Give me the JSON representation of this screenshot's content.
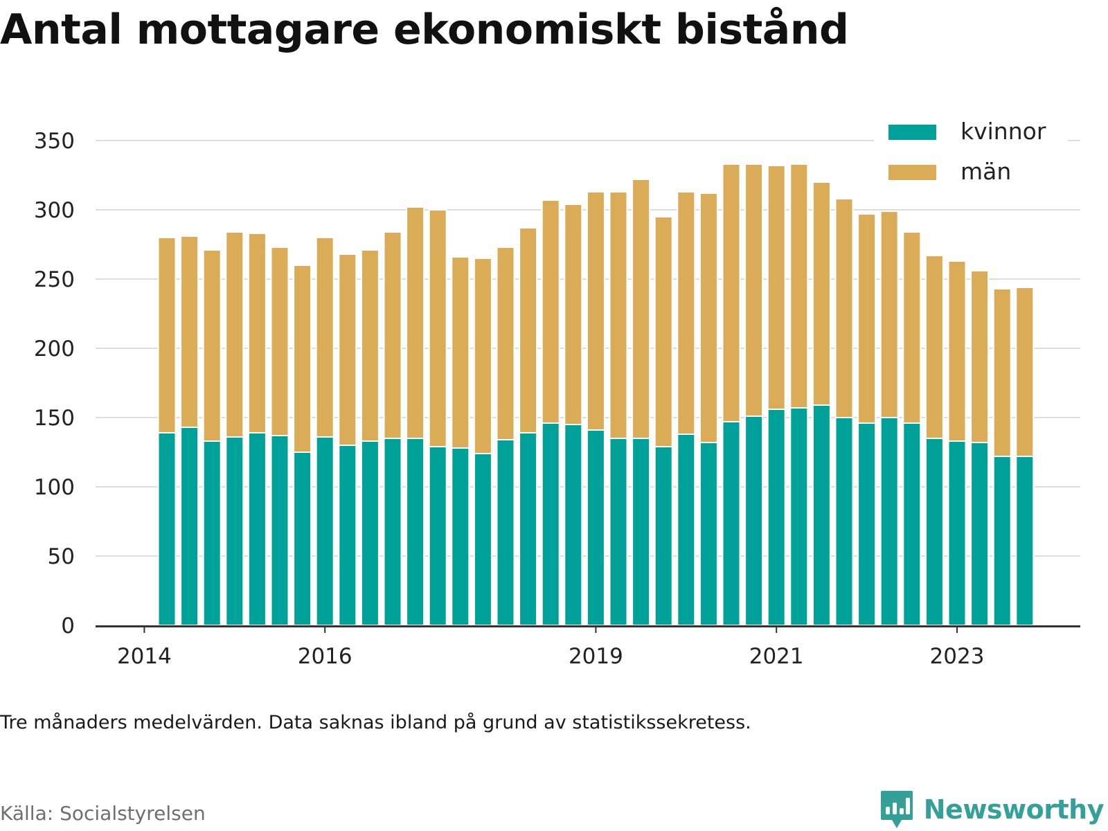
{
  "title": "Antal mottagare ekonomiskt bistånd",
  "note": "Tre månaders medelvärden. Data saknas ibland på grund av statistikssekretess.",
  "source": "Källa: Socialstyrelsen",
  "brand": {
    "name": "Newsworthy",
    "icon": "newsworthy-logo-icon",
    "color": "#35a097"
  },
  "chart_data": {
    "type": "bar",
    "stacked": true,
    "ylim": [
      0,
      350
    ],
    "yticks": [
      0,
      50,
      100,
      150,
      200,
      250,
      300,
      350
    ],
    "xticks": [
      {
        "label": "2014",
        "index": -1
      },
      {
        "label": "2016",
        "index": 7
      },
      {
        "label": "2019",
        "index": 19
      },
      {
        "label": "2021",
        "index": 27
      },
      {
        "label": "2023",
        "index": 35
      }
    ],
    "grid": true,
    "legend_position": "top-right",
    "series": [
      {
        "name": "kvinnor",
        "color": "#00a199",
        "values": [
          139,
          143,
          133,
          136,
          139,
          137,
          125,
          136,
          130,
          133,
          135,
          135,
          129,
          128,
          124,
          134,
          139,
          146,
          145,
          141,
          135,
          135,
          129,
          138,
          132,
          147,
          151,
          156,
          157,
          159,
          150,
          146,
          150,
          146,
          135,
          133,
          132,
          122,
          122
        ]
      },
      {
        "name": "män",
        "color": "#dbac57",
        "values": [
          141,
          138,
          138,
          148,
          144,
          136,
          135,
          144,
          138,
          138,
          149,
          167,
          171,
          138,
          141,
          139,
          148,
          161,
          159,
          172,
          178,
          187,
          166,
          175,
          180,
          186,
          182,
          176,
          176,
          161,
          158,
          151,
          149,
          138,
          132,
          130,
          124,
          121,
          122
        ]
      }
    ]
  }
}
